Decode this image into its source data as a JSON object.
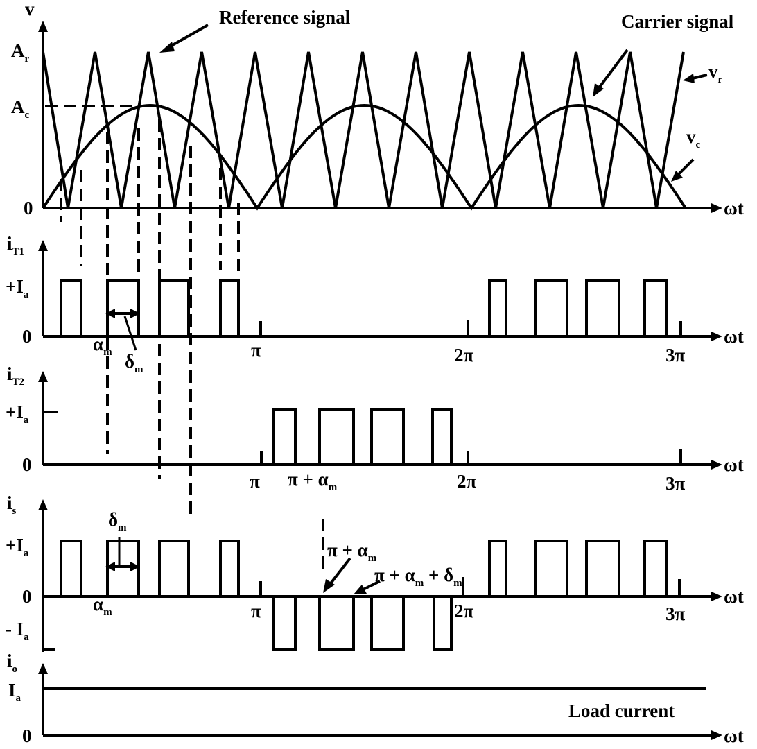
{
  "labels": {
    "v_axis": "v",
    "Ar_main": "A",
    "Ar_sub": "r",
    "Ac_main": "A",
    "Ac_sub": "c",
    "zero": "0",
    "omega_t": "ωt",
    "reference_signal": "Reference signal",
    "carrier_signal": "Carrier signal",
    "vr_main": "v",
    "vr_sub": "r",
    "vc_main": "v",
    "vc_sub": "c",
    "iT1_main": "i",
    "iT1_sub": "T1",
    "iT2_main": "i",
    "iT2_sub": "T2",
    "is_main": "i",
    "is_sub": "s",
    "io_main": "i",
    "io_sub": "o",
    "plus_Ia_main": "+I",
    "plus_Ia_sub": "a",
    "minus_Ia_main": "- I",
    "minus_Ia_sub": "a",
    "Ia_main": "I",
    "Ia_sub": "a",
    "alpha_main": "α",
    "alpha_sub": "m",
    "delta_main": "δ",
    "delta_sub": "m",
    "pi": "π",
    "two_pi": "2π",
    "three_pi": "3π",
    "pi_plus_alpha_main": "π + α",
    "pi_plus_alpha_sub": "m",
    "pi_plus_alpha_delta_a": "π + α",
    "pi_plus_alpha_delta_a_sub": "m",
    "pi_plus_alpha_delta_b": " + δ",
    "pi_plus_alpha_delta_b_sub": "m",
    "load_current": "Load current"
  }
}
